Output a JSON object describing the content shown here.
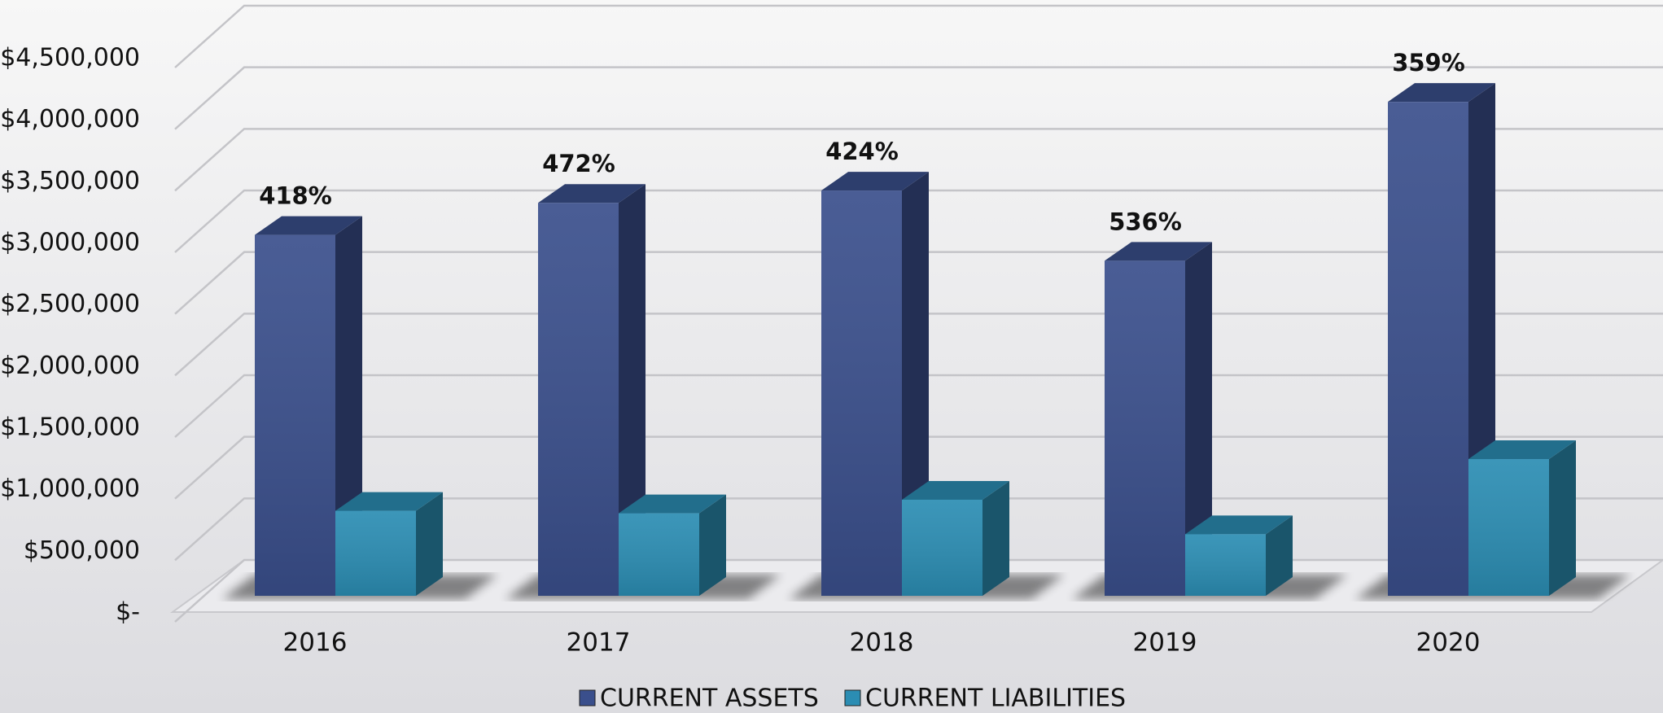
{
  "chart_data": {
    "type": "bar3d",
    "categories": [
      "2016",
      "2017",
      "2018",
      "2019",
      "2020"
    ],
    "series": [
      {
        "name": "CURRENT ASSETS",
        "color": "#3a4f8c",
        "values": [
          2930000,
          3190000,
          3290000,
          2720000,
          4010000
        ]
      },
      {
        "name": "CURRENT LIABILITIES",
        "color": "#2b8db3",
        "values": [
          690000,
          670000,
          780000,
          500000,
          1110000
        ]
      }
    ],
    "ratio_labels": [
      "418%",
      "472%",
      "424%",
      "536%",
      "359%"
    ],
    "ylim": [
      0,
      4500000
    ],
    "yticks": [
      {
        "value": 0,
        "label": "$-"
      },
      {
        "value": 500000,
        "label": "$500,000"
      },
      {
        "value": 1000000,
        "label": "$1,000,000"
      },
      {
        "value": 1500000,
        "label": "$1,500,000"
      },
      {
        "value": 2000000,
        "label": "$2,000,000"
      },
      {
        "value": 2500000,
        "label": "$2,500,000"
      },
      {
        "value": 3000000,
        "label": "$3,000,000"
      },
      {
        "value": 3500000,
        "label": "$3,500,000"
      },
      {
        "value": 4000000,
        "label": "$4,000,000"
      },
      {
        "value": 4500000,
        "label": "$4,500,000"
      }
    ],
    "grid": true,
    "legend": "bottom"
  }
}
